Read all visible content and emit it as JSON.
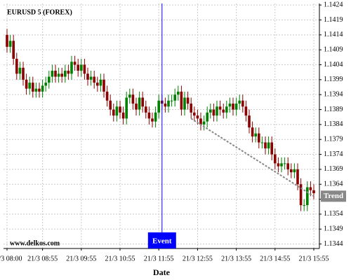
{
  "chart_data": {
    "type": "candlestick",
    "title": "EURUSD 5 (FOREX)",
    "x_label": "Date",
    "watermark": "www.delkos.com",
    "categories": [
      "21/3 08:00",
      null,
      null,
      null,
      null,
      null,
      null,
      null,
      null,
      null,
      null,
      "21/3 08:55",
      null,
      null,
      null,
      null,
      null,
      null,
      null,
      null,
      null,
      null,
      null,
      "21/3 09:55",
      null,
      null,
      null,
      null,
      null,
      null,
      null,
      null,
      null,
      null,
      null,
      "21/3 10:55",
      null,
      null,
      null,
      null,
      null,
      null,
      null,
      null,
      null,
      null,
      null,
      "21/3 11:55",
      null,
      null,
      null,
      null,
      null,
      null,
      null,
      null,
      null,
      null,
      null,
      "21/3 12:55",
      null,
      null,
      null,
      null,
      null,
      null,
      null,
      null,
      null,
      null,
      null,
      "21/3 13:55",
      null,
      null,
      null,
      null,
      null,
      null,
      null,
      null,
      null,
      null,
      null,
      "21/3 14:55",
      null,
      null,
      null,
      null,
      null,
      null,
      null,
      null,
      null,
      null,
      null,
      "21/3 15:55"
    ],
    "open": [
      1.1414,
      1.141,
      1.1412,
      1.1406,
      1.1401,
      1.1403,
      1.1399,
      1.1396,
      1.1398,
      1.1395,
      1.1396,
      1.1395,
      1.1397,
      1.1398,
      1.14,
      1.1402,
      1.14,
      1.1401,
      1.14,
      1.1402,
      1.1401,
      1.1405,
      1.1404,
      1.1402,
      1.1404,
      1.1401,
      1.1399,
      1.14,
      1.1398,
      1.1397,
      1.1399,
      1.1395,
      1.1392,
      1.1389,
      1.1387,
      1.139,
      1.1388,
      1.1386,
      1.1393,
      1.1394,
      1.1391,
      1.1389,
      1.1393,
      1.139,
      1.1388,
      1.1386,
      1.1385,
      1.1388,
      1.1392,
      1.1391,
      1.139,
      1.1392,
      1.1392,
      1.1394,
      1.1395,
      1.1389,
      1.1393,
      1.1391,
      1.1388,
      1.1387,
      1.1386,
      1.1384,
      1.1385,
      1.1388,
      1.1389,
      1.1387,
      1.139,
      1.1389,
      1.1388,
      1.139,
      1.1391,
      1.1389,
      1.1391,
      1.1392,
      1.139,
      1.1387,
      1.1383,
      1.138,
      1.1381,
      1.1378,
      1.1378,
      1.1376,
      1.1378,
      1.1374,
      1.1371,
      1.137,
      1.1371,
      1.1371,
      1.1369,
      1.1368,
      1.1369,
      1.1364,
      1.1357,
      1.1357,
      1.1363,
      1.1362
    ],
    "high": [
      1.1416,
      1.1414,
      1.1414,
      1.1408,
      1.1405,
      1.1405,
      1.1401,
      1.14,
      1.14,
      1.1398,
      1.1398,
      1.1399,
      1.14,
      1.1402,
      1.1404,
      1.1404,
      1.1403,
      1.1403,
      1.1404,
      1.1404,
      1.1407,
      1.1407,
      1.1406,
      1.1406,
      1.1406,
      1.1403,
      1.1402,
      1.1402,
      1.14,
      1.1401,
      1.1401,
      1.1397,
      1.1394,
      1.1391,
      1.1392,
      1.1392,
      1.139,
      1.1395,
      1.1396,
      1.1396,
      1.1393,
      1.1395,
      1.1395,
      1.1392,
      1.139,
      1.1388,
      1.139,
      1.1394,
      1.1394,
      1.1393,
      1.1394,
      1.1394,
      1.1396,
      1.1397,
      1.1397,
      1.1395,
      1.1395,
      1.1393,
      1.139,
      1.1389,
      1.1388,
      1.1387,
      1.139,
      1.1391,
      1.1391,
      1.1392,
      1.1392,
      1.1391,
      1.1392,
      1.1393,
      1.1393,
      1.1393,
      1.1394,
      1.1394,
      1.1392,
      1.1389,
      1.1385,
      1.1383,
      1.1383,
      1.138,
      1.138,
      1.138,
      1.138,
      1.1376,
      1.1373,
      1.1373,
      1.1373,
      1.1373,
      1.1371,
      1.1371,
      1.1371,
      1.1366,
      1.1359,
      1.1365,
      1.1365,
      1.1364
    ],
    "low": [
      1.1408,
      1.1408,
      1.1404,
      1.1399,
      1.1399,
      1.1397,
      1.1394,
      1.1394,
      1.1393,
      1.1393,
      1.1393,
      1.1393,
      1.1395,
      1.1396,
      1.1398,
      1.1398,
      1.1398,
      1.1398,
      1.1398,
      1.1399,
      1.1399,
      1.1402,
      1.14,
      1.14,
      1.1399,
      1.1397,
      1.1397,
      1.1396,
      1.1395,
      1.1395,
      1.1393,
      1.139,
      1.1387,
      1.1385,
      1.1385,
      1.1386,
      1.1384,
      1.1384,
      1.1391,
      1.1389,
      1.1387,
      1.1387,
      1.1388,
      1.1386,
      1.1384,
      1.1383,
      1.1383,
      1.1386,
      1.1389,
      1.1388,
      1.1388,
      1.139,
      1.139,
      1.1392,
      1.1387,
      1.1387,
      1.1389,
      1.1386,
      1.1385,
      1.1384,
      1.1382,
      1.1382,
      1.1383,
      1.1386,
      1.1385,
      1.1385,
      1.1387,
      1.1386,
      1.1386,
      1.1388,
      1.1387,
      1.1387,
      1.1389,
      1.1388,
      1.1385,
      1.1381,
      1.1378,
      1.1378,
      1.1376,
      1.1376,
      1.1374,
      1.1374,
      1.1372,
      1.1369,
      1.1368,
      1.1368,
      1.1369,
      1.1367,
      1.1366,
      1.1366,
      1.1362,
      1.1355,
      1.1355,
      1.1355,
      1.136,
      1.1359
    ],
    "close": [
      1.141,
      1.1412,
      1.1406,
      1.1401,
      1.1403,
      1.1399,
      1.1396,
      1.1398,
      1.1395,
      1.1396,
      1.1395,
      1.1397,
      1.1398,
      1.14,
      1.1402,
      1.14,
      1.1401,
      1.14,
      1.1402,
      1.1401,
      1.1405,
      1.1404,
      1.1402,
      1.1404,
      1.1401,
      1.1399,
      1.14,
      1.1398,
      1.1397,
      1.1399,
      1.1395,
      1.1392,
      1.1389,
      1.1387,
      1.139,
      1.1388,
      1.1386,
      1.1393,
      1.1394,
      1.1391,
      1.1389,
      1.1393,
      1.139,
      1.1388,
      1.1386,
      1.1385,
      1.1388,
      1.1392,
      1.1391,
      1.139,
      1.1392,
      1.1392,
      1.1394,
      1.1395,
      1.1389,
      1.1393,
      1.1391,
      1.1388,
      1.1387,
      1.1386,
      1.1384,
      1.1385,
      1.1388,
      1.1389,
      1.1387,
      1.139,
      1.1389,
      1.1388,
      1.139,
      1.1391,
      1.1389,
      1.1391,
      1.1392,
      1.139,
      1.1387,
      1.1383,
      1.138,
      1.1381,
      1.1378,
      1.1378,
      1.1376,
      1.1378,
      1.1374,
      1.1371,
      1.137,
      1.1371,
      1.1371,
      1.1369,
      1.1368,
      1.1369,
      1.1364,
      1.1357,
      1.1357,
      1.1363,
      1.1362,
      1.1361
    ],
    "up_color": "#008000",
    "down_color": "#8b0000",
    "ylim": [
      1.13425,
      1.14245
    ],
    "yticks": [
      1.1344,
      1.1349,
      1.1354,
      1.1359,
      1.1364,
      1.1369,
      1.1374,
      1.1379,
      1.1384,
      1.1389,
      1.1394,
      1.1399,
      1.1404,
      1.1409,
      1.1414,
      1.1419,
      1.1424
    ],
    "grid": true,
    "event": {
      "label": "Event",
      "x": 48,
      "color": "#0000ff"
    },
    "trend": {
      "label": "Trend",
      "x": [
        57,
        95
      ],
      "values": [
        1.1386,
        1.136
      ],
      "color": "#888888"
    }
  }
}
